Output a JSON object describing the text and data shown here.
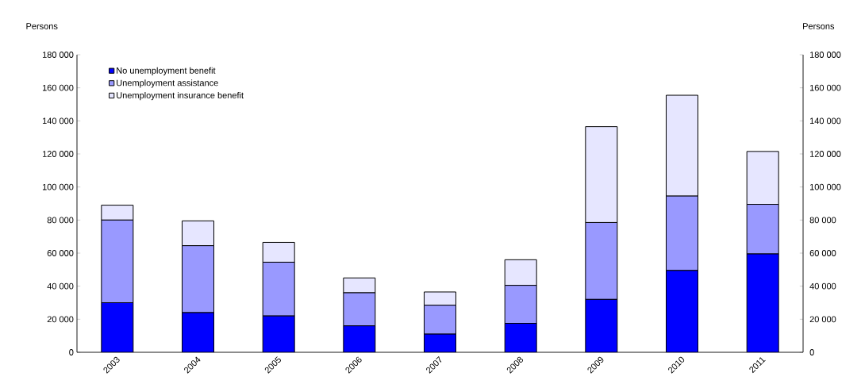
{
  "chart_data": {
    "type": "bar",
    "stacked": true,
    "ylabel": "Persons",
    "y2label": "Persons",
    "legend": "top left",
    "categories": [
      "2003",
      "2004",
      "2005",
      "2006",
      "2007",
      "2008",
      "2009",
      "2010",
      "2011"
    ],
    "series": [
      {
        "name": "No unemployment benefit",
        "color": "#0000ff",
        "values": [
          30000,
          24000,
          22000,
          16000,
          11000,
          17500,
          32000,
          49500,
          59500
        ]
      },
      {
        "name": "Unemployment assistance",
        "color": "#9999ff",
        "values": [
          50000,
          40500,
          32500,
          20000,
          17500,
          23000,
          46500,
          45000,
          30000
        ]
      },
      {
        "name": "Unemployment insurance benefit",
        "color": "#e6e6ff",
        "values": [
          9000,
          15000,
          12000,
          9000,
          8000,
          15500,
          58000,
          61000,
          32000
        ]
      }
    ],
    "ylim": [
      0,
      180000
    ],
    "yticks": [
      0,
      {
        "value": 20000,
        "label": "20 000"
      },
      {
        "value": 40000,
        "label": "40 000"
      },
      {
        "value": 60000,
        "label": "60 000"
      },
      {
        "value": 80000,
        "label": "80 000"
      },
      {
        "value": 100000,
        "label": "100 000"
      },
      {
        "value": 120000,
        "label": "120 000"
      },
      {
        "value": 140000,
        "label": "140 000"
      },
      {
        "value": 160000,
        "label": "160 000"
      },
      {
        "value": 180000,
        "label": "180 000"
      }
    ],
    "y2lim": [
      0,
      180000
    ],
    "y2ticks": [
      0,
      {
        "value": 20000,
        "label": "20 000"
      },
      {
        "value": 40000,
        "label": "40 000"
      },
      {
        "value": 60000,
        "label": "60 000"
      },
      {
        "value": 80000,
        "label": "80 000"
      },
      {
        "value": 100000,
        "label": "100 000"
      },
      {
        "value": 120000,
        "label": "120 000"
      },
      {
        "value": 140000,
        "label": "140 000"
      },
      {
        "value": 160000,
        "label": "160 000"
      },
      {
        "value": 180000,
        "label": "180 000"
      }
    ]
  }
}
